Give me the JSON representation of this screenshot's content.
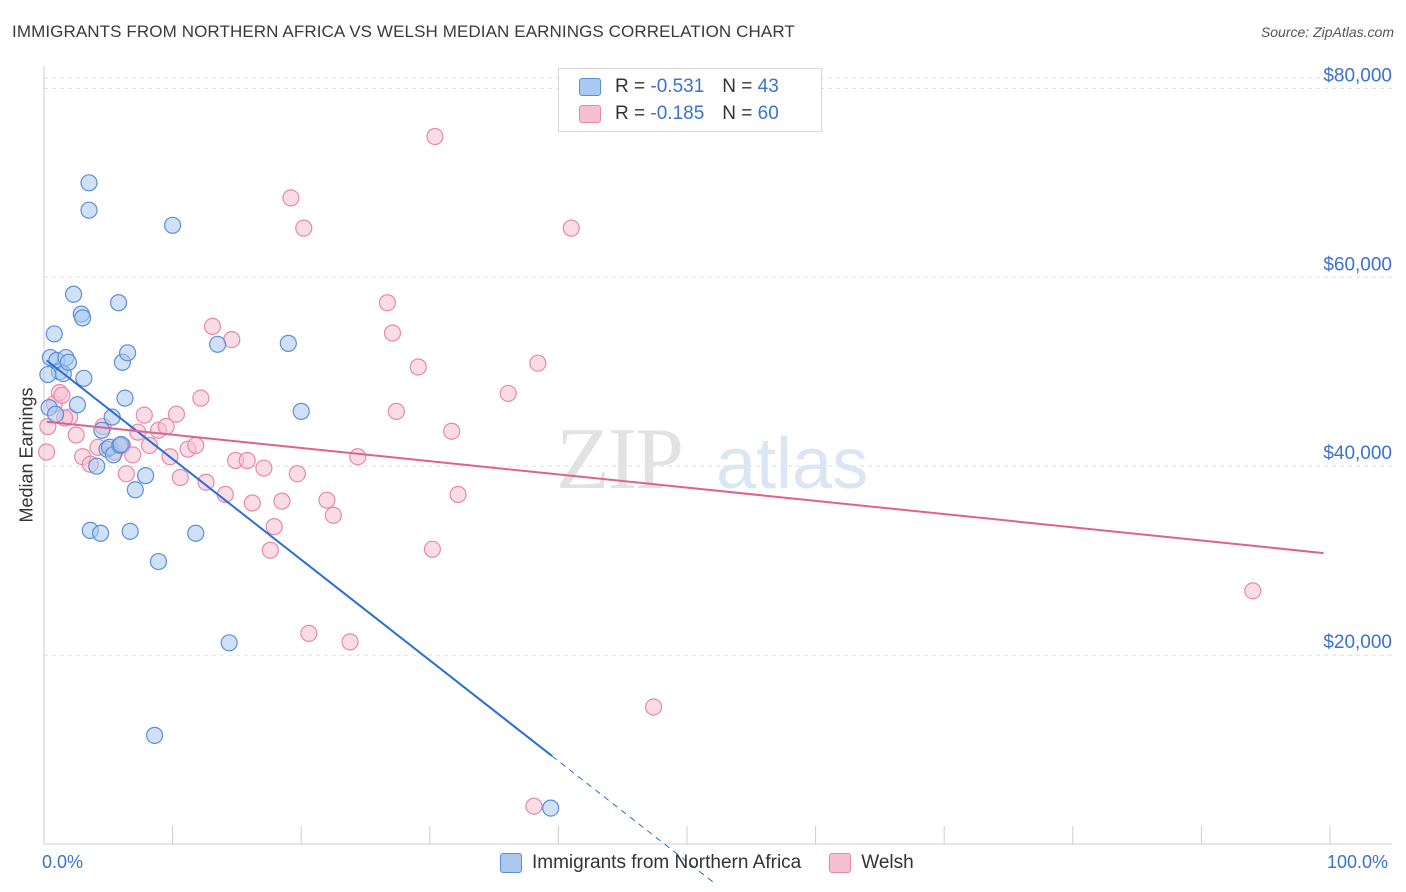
{
  "header": {
    "title": "IMMIGRANTS FROM NORTHERN AFRICA VS WELSH MEDIAN EARNINGS CORRELATION CHART",
    "source": "Source: ZipAtlas.com"
  },
  "legend": {
    "rows": [
      {
        "r_label": "R =",
        "r_value": "-0.531",
        "n_label": "N =",
        "n_value": "43"
      },
      {
        "r_label": "R =",
        "r_value": "-0.185",
        "n_label": "N =",
        "n_value": "60"
      }
    ]
  },
  "bottom_legend": {
    "series1": "Immigrants from Northern Africa",
    "series2": "Welsh"
  },
  "axes": {
    "x_min_label": "0.0%",
    "x_max_label": "100.0%",
    "y_label": "Median Earnings"
  },
  "watermark": {
    "zip": "ZIP",
    "atlas": "atlas"
  },
  "colors": {
    "blue_fill": "#aac8f0",
    "blue_stroke": "#5b8fd8",
    "blue_line": "#2b6fd6",
    "pink_fill": "#f6bfd2",
    "pink_stroke": "#e889a8",
    "pink_line": "#e0618e",
    "tick_text": "#3a72d0",
    "grid": "#dddddd"
  },
  "chart_data": {
    "type": "scatter",
    "x_range": [
      0,
      100
    ],
    "y_range": [
      0,
      83000
    ],
    "y_ticks": [
      20000,
      40000,
      60000,
      80000
    ],
    "y_tick_labels": [
      "$20,000",
      "$40,000",
      "$60,000",
      "$80,000"
    ],
    "grid": true,
    "legend_placement": "top-center",
    "series": [
      {
        "name": "Immigrants from Northern Africa",
        "r": -0.531,
        "n": 43,
        "trend": {
          "x_start": 0.2,
          "y_start": 51200,
          "x_solid_end": 39.5,
          "x_end": 52,
          "y_end": -4000
        },
        "points": [
          [
            0.5,
            51500
          ],
          [
            0.8,
            54000
          ],
          [
            1.0,
            51200
          ],
          [
            1.2,
            50000
          ],
          [
            1.5,
            49800
          ],
          [
            1.7,
            51500
          ],
          [
            1.9,
            51000
          ],
          [
            2.3,
            58200
          ],
          [
            2.6,
            46500
          ],
          [
            2.9,
            56100
          ],
          [
            3.0,
            55700
          ],
          [
            3.1,
            49300
          ],
          [
            3.5,
            70000
          ],
          [
            3.5,
            67100
          ],
          [
            3.6,
            33200
          ],
          [
            4.1,
            40000
          ],
          [
            4.4,
            32900
          ],
          [
            4.5,
            43800
          ],
          [
            4.9,
            41800
          ],
          [
            5.1,
            42000
          ],
          [
            5.3,
            45200
          ],
          [
            5.4,
            41200
          ],
          [
            5.9,
            42200
          ],
          [
            6.0,
            42300
          ],
          [
            5.8,
            57300
          ],
          [
            6.1,
            51000
          ],
          [
            6.3,
            47200
          ],
          [
            6.5,
            52000
          ],
          [
            6.7,
            33100
          ],
          [
            7.1,
            37500
          ],
          [
            7.9,
            39000
          ],
          [
            8.6,
            11500
          ],
          [
            8.9,
            29900
          ],
          [
            10.0,
            65500
          ],
          [
            11.8,
            32900
          ],
          [
            13.5,
            52900
          ],
          [
            14.4,
            21300
          ],
          [
            19.0,
            53000
          ],
          [
            20.0,
            45800
          ],
          [
            0.3,
            49700
          ],
          [
            0.4,
            46200
          ],
          [
            39.4,
            3800
          ],
          [
            0.9,
            45500
          ]
        ]
      },
      {
        "name": "Welsh",
        "r": -0.185,
        "n": 60,
        "trend": {
          "x_start": 0.2,
          "y_start": 44700,
          "x_end": 99.5,
          "y_end": 30800
        },
        "points": [
          [
            0.3,
            44200
          ],
          [
            0.8,
            46600
          ],
          [
            1.2,
            47800
          ],
          [
            1.4,
            47500
          ],
          [
            2.0,
            45200
          ],
          [
            2.5,
            43300
          ],
          [
            3.0,
            41000
          ],
          [
            3.6,
            40200
          ],
          [
            4.2,
            42000
          ],
          [
            4.6,
            44200
          ],
          [
            5.5,
            41500
          ],
          [
            6.1,
            42200
          ],
          [
            6.4,
            39200
          ],
          [
            6.9,
            41200
          ],
          [
            7.3,
            43600
          ],
          [
            7.8,
            45400
          ],
          [
            8.2,
            42200
          ],
          [
            8.9,
            43800
          ],
          [
            9.5,
            44200
          ],
          [
            9.8,
            41000
          ],
          [
            10.3,
            45500
          ],
          [
            10.6,
            38800
          ],
          [
            11.2,
            41800
          ],
          [
            11.8,
            42200
          ],
          [
            12.2,
            47200
          ],
          [
            12.6,
            38300
          ],
          [
            13.1,
            54800
          ],
          [
            14.1,
            37000
          ],
          [
            14.6,
            53400
          ],
          [
            14.9,
            40600
          ],
          [
            15.8,
            40600
          ],
          [
            16.2,
            36100
          ],
          [
            17.1,
            39800
          ],
          [
            17.6,
            31100
          ],
          [
            17.9,
            33600
          ],
          [
            18.5,
            36300
          ],
          [
            19.2,
            68400
          ],
          [
            19.7,
            39200
          ],
          [
            20.2,
            65200
          ],
          [
            20.6,
            22300
          ],
          [
            22.0,
            36400
          ],
          [
            22.5,
            34800
          ],
          [
            23.8,
            21400
          ],
          [
            24.4,
            41000
          ],
          [
            26.7,
            57300
          ],
          [
            27.1,
            54100
          ],
          [
            27.4,
            45800
          ],
          [
            29.1,
            50500
          ],
          [
            30.2,
            31200
          ],
          [
            30.4,
            74900
          ],
          [
            31.7,
            43700
          ],
          [
            32.2,
            37000
          ],
          [
            36.1,
            47700
          ],
          [
            38.4,
            50900
          ],
          [
            38.1,
            4000
          ],
          [
            41.0,
            65200
          ],
          [
            47.4,
            14500
          ],
          [
            94.0,
            26800
          ],
          [
            0.2,
            41500
          ],
          [
            1.6,
            45100
          ]
        ]
      }
    ]
  }
}
